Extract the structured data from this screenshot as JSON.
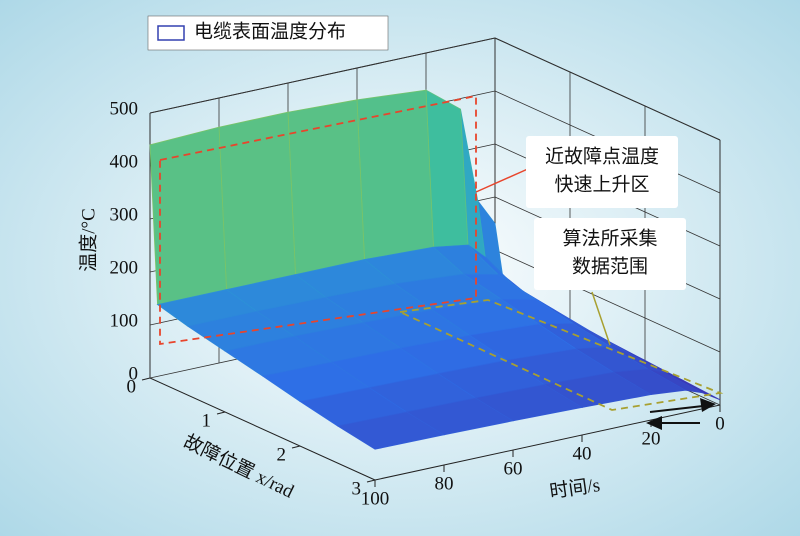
{
  "chart_data": {
    "type": "surface3d",
    "legend": "电缆表面温度分布",
    "zlabel": "温度/°C",
    "xlabel": "故障位置 x/rad",
    "tlabel": "时间/s",
    "x": [
      0,
      0.1,
      0.5,
      1,
      1.5,
      2,
      2.5,
      3
    ],
    "t": [
      0,
      5,
      10,
      20,
      40,
      60,
      80,
      100
    ],
    "z": [
      [
        150,
        200,
        380,
        430,
        440,
        445,
        445,
        440
      ],
      [
        60,
        100,
        130,
        140,
        145,
        145,
        145,
        145
      ],
      [
        40,
        70,
        100,
        115,
        125,
        128,
        130,
        130
      ],
      [
        30,
        60,
        85,
        100,
        108,
        112,
        115,
        115
      ],
      [
        25,
        50,
        72,
        85,
        92,
        96,
        98,
        100
      ],
      [
        20,
        42,
        60,
        70,
        77,
        80,
        82,
        84
      ],
      [
        15,
        35,
        50,
        58,
        63,
        66,
        68,
        70
      ],
      [
        10,
        30,
        42,
        48,
        52,
        55,
        57,
        58
      ]
    ],
    "xlim": [
      0,
      3
    ],
    "xticks": [
      0,
      1,
      2,
      3
    ],
    "tlim": [
      0,
      100
    ],
    "tticks": [
      0,
      20,
      40,
      60,
      80,
      100
    ],
    "zlim": [
      0,
      500
    ],
    "zticks": [
      0,
      100,
      200,
      300,
      400,
      500
    ],
    "grid": true,
    "annotations": [
      {
        "lines": [
          "近故障点温度",
          "快速上升区"
        ],
        "color": "#e8452c"
      },
      {
        "lines": [
          "算法所采集",
          "数据范围"
        ],
        "color": "#a8a030"
      }
    ]
  }
}
